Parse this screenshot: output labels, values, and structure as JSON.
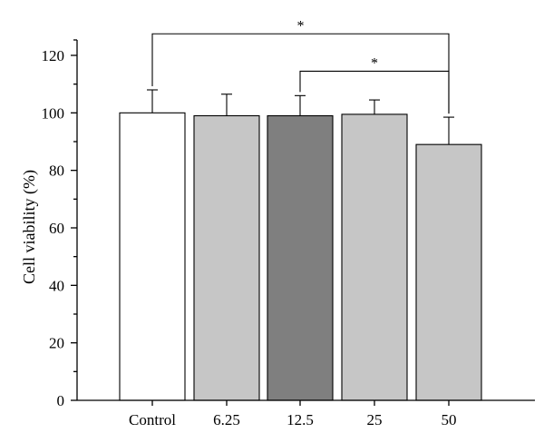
{
  "chart_data": {
    "type": "bar",
    "ylabel": "Cell viability (%)",
    "xlabel": "",
    "ylim": [
      0,
      120
    ],
    "yticks": [
      0,
      20,
      40,
      60,
      80,
      100,
      120
    ],
    "categories": [
      "Control",
      "6.25",
      "12.5",
      "25",
      "50"
    ],
    "values": [
      100,
      99,
      99,
      99.5,
      89
    ],
    "errors": [
      8,
      7.5,
      7,
      5,
      9.5
    ],
    "bar_colors": [
      "#ffffff",
      "#c6c6c6",
      "#7f7f7f",
      "#c6c6c6",
      "#c6c6c6"
    ],
    "significance": [
      {
        "from": "Control",
        "to": "50",
        "label": "*",
        "level": 127.5
      },
      {
        "from": "12.5",
        "to": "50",
        "label": "*",
        "level": 114.5
      }
    ],
    "grid": false,
    "legend": "none"
  }
}
